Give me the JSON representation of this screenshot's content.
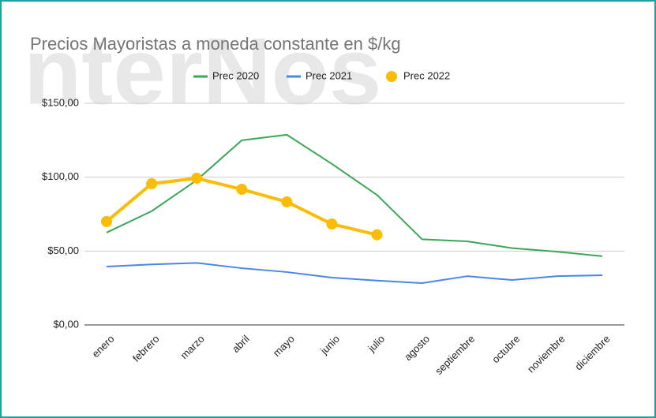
{
  "chart_data": {
    "type": "line",
    "title": "Precios Mayoristas a moneda constante en $/kg",
    "watermark": "nterNos",
    "categories": [
      "enero",
      "febrero",
      "marzo",
      "abril",
      "mayo",
      "junio",
      "julio",
      "agosto",
      "septiembre",
      "octubre",
      "noviembre",
      "diciembre"
    ],
    "series": [
      {
        "name": "Prec 2020",
        "color": "#3aa757",
        "values": [
          62.5,
          77,
          98,
          125,
          128.7,
          109,
          88,
          58,
          56.6,
          52,
          49.6,
          46.5
        ]
      },
      {
        "name": "Prec 2021",
        "color": "#4a86e8",
        "values": [
          39.5,
          41,
          42,
          38.4,
          35.8,
          32,
          30,
          28.3,
          33,
          30.4,
          33,
          33.6
        ]
      },
      {
        "name": "Prec 2022",
        "color": "#fbbc04",
        "values": [
          70,
          95.6,
          99.3,
          91.8,
          83.3,
          68.3,
          61,
          null,
          null,
          null,
          null,
          null
        ]
      }
    ],
    "ylim": [
      0,
      150
    ],
    "yticks": [
      {
        "value": 0,
        "label": "$0,00"
      },
      {
        "value": 50,
        "label": "$50,00"
      },
      {
        "value": 100,
        "label": "$100,00"
      },
      {
        "value": 150,
        "label": "$150,00"
      }
    ],
    "grid": true,
    "legend": "top"
  }
}
